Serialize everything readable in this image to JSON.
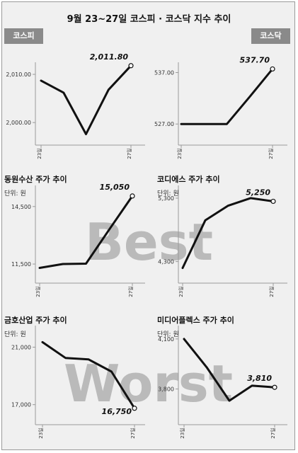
{
  "title": "9월 23~27일 코스피 · 코스닥 지수 추이",
  "tags": {
    "left": "코스피",
    "right": "코스닥"
  },
  "watermark": {
    "best": "Best",
    "worst": "Worst"
  },
  "colors": {
    "line": "#111111",
    "background": "#f0f0f0",
    "tag": "#8a8a8a",
    "watermark": "#8c8c8c"
  },
  "chart_data": [
    {
      "type": "line",
      "title": "",
      "unit": "",
      "x": [
        "23일",
        "24일",
        "25일",
        "26일",
        "27일"
      ],
      "x_tick_labels": [
        "23일",
        "27일"
      ],
      "values": [
        2008.7,
        2006.2,
        1997.6,
        2006.8,
        2011.8
      ],
      "ylim": [
        1996.5,
        2012.5
      ],
      "y_ticks": [
        2000,
        2010
      ],
      "y_tick_labels": [
        "2,000.00",
        "2,010.00"
      ],
      "end_label": "2,011.80"
    },
    {
      "type": "line",
      "title": "",
      "unit": "",
      "x": [
        "23일",
        "24일",
        "25일",
        "26일",
        "27일"
      ],
      "x_tick_labels": [
        "23일",
        "27일"
      ],
      "values": [
        527.0,
        527.0,
        527.0,
        532.3,
        537.7
      ],
      "ylim": [
        524.0,
        539.0
      ],
      "y_ticks": [
        527,
        537
      ],
      "y_tick_labels": [
        "527.00",
        "537.00"
      ],
      "end_label": "537.70"
    },
    {
      "type": "line",
      "title": "동원수산 주가 추이",
      "unit": "단위: 원",
      "x": [
        "23일",
        "24일",
        "25일",
        "26일",
        "27일"
      ],
      "x_tick_labels": [
        "23일",
        "27일"
      ],
      "values": [
        11300,
        11500,
        11520,
        13300,
        15050
      ],
      "ylim": [
        10800,
        15600
      ],
      "y_ticks": [
        11500,
        14500
      ],
      "y_tick_labels": [
        "11,500",
        "14,500"
      ],
      "end_label": "15,050"
    },
    {
      "type": "line",
      "title": "코디에스 주가 추이",
      "unit": "단위: 원",
      "x": [
        "23일",
        "24일",
        "25일",
        "26일",
        "27일"
      ],
      "x_tick_labels": [
        "23일",
        "27일"
      ],
      "values": [
        4200,
        4950,
        5180,
        5300,
        5250
      ],
      "ylim": [
        4050,
        5500
      ],
      "y_ticks": [
        4300,
        5300
      ],
      "y_tick_labels": [
        "4,300",
        "5,300"
      ],
      "end_label": "5,250"
    },
    {
      "type": "line",
      "title": "금호산업 주가 추이",
      "unit": "단위: 원",
      "x": [
        "23일",
        "24일",
        "25일",
        "26일",
        "27일"
      ],
      "x_tick_labels": [
        "23일",
        "27일"
      ],
      "values": [
        21350,
        20250,
        20150,
        19300,
        16750
      ],
      "ylim": [
        16000,
        22500
      ],
      "y_ticks": [
        17000,
        21000
      ],
      "y_tick_labels": [
        "17,000",
        "21,000"
      ],
      "end_label": "16,750"
    },
    {
      "type": "line",
      "title": "미디어플렉스 주가 추이",
      "unit": "단위: 원",
      "x": [
        "23일",
        "24일",
        "25일",
        "26일",
        "27일"
      ],
      "x_tick_labels": [
        "23일",
        "27일"
      ],
      "values": [
        4100,
        3930,
        3730,
        3820,
        3810
      ],
      "ylim": [
        3620,
        4180
      ],
      "y_ticks": [
        3800,
        4100
      ],
      "y_tick_labels": [
        "3,800",
        "4,100"
      ],
      "end_label": "3,810"
    }
  ]
}
